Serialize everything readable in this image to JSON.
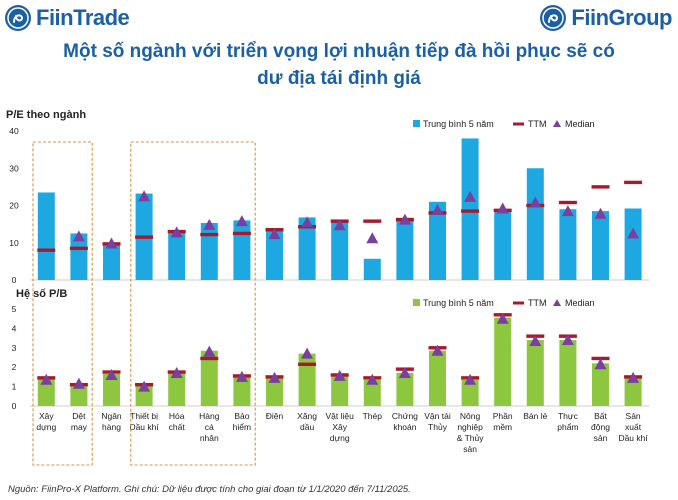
{
  "header": {
    "left_brand": "FiinTrade",
    "right_brand": "FiinGroup",
    "left_icon": "fiintrade-logo-icon",
    "right_icon": "fiingroup-logo-icon",
    "brand_color": "#1b5fa6"
  },
  "title": {
    "line1": "Một số ngành với triển vọng lợi nhuận tiếp đà hồi phục sẽ có",
    "line2": "dư địa tái định giá"
  },
  "footer": {
    "note": "Nguồn: FiinPro-X Platform. Ghi chú: Dữ liệu được tính cho giai đoạn từ 1/1/2020 đến 7/11/2025."
  },
  "colors": {
    "pe_bar": "#1ea8e2",
    "pb_bar": "#8dc63f",
    "ttm": "#a8192e",
    "median": "#7b3fa0",
    "highlight_box": "#d4934a"
  },
  "chart_data": [
    {
      "type": "bar",
      "title": "P/E theo ngành",
      "ylabel": "P/E theo ngành",
      "ylim": [
        0,
        40
      ],
      "yticks": [
        0,
        10,
        20,
        30,
        40
      ],
      "legend": [
        "Trung bình 5 năm",
        "TTM",
        "Median"
      ],
      "legend_position": "top-right",
      "categories": [
        "Xây dựng",
        "Dệt may",
        "Ngân hàng",
        "Thiết bị Dầu khí",
        "Hóa chất",
        "Hàng cá nhân",
        "Bảo hiểm",
        "Điện",
        "Xăng dầu",
        "Vật liệu Xây dựng",
        "Thép",
        "Chứng khoán",
        "Vận tải Thủy",
        "Nông nghiệp & Thủy sản",
        "Phần mềm",
        "Bán lẻ",
        "Thực phẩm",
        "Bất động sản",
        "Sản xuất Dầu khí"
      ],
      "series": [
        {
          "name": "Trung bình 5 năm",
          "kind": "bar",
          "values": [
            23.5,
            12.5,
            10,
            23.2,
            13,
            15.3,
            16,
            13.5,
            16.8,
            15.5,
            5.7,
            16.7,
            21,
            38,
            18.5,
            30,
            19,
            18.5,
            19.2
          ]
        },
        {
          "name": "TTM",
          "kind": "marker",
          "values": [
            8,
            8.5,
            9.7,
            11.5,
            13,
            12.2,
            12.5,
            13.5,
            14.3,
            15.8,
            15.8,
            16.2,
            18,
            18.5,
            18.7,
            20,
            20.8,
            25,
            26.2
          ]
        },
        {
          "name": "Median",
          "kind": "triangle",
          "values": [
            null,
            11.7,
            9.8,
            22.5,
            12.8,
            14.8,
            15.8,
            12.3,
            15.5,
            14.7,
            11.2,
            16.2,
            18.8,
            22.3,
            19.2,
            20.8,
            18.5,
            17.8,
            12.5
          ]
        }
      ]
    },
    {
      "type": "bar",
      "title": "Hệ số P/B",
      "ylabel": "Hệ số P/B",
      "ylim": [
        0,
        5
      ],
      "yticks": [
        0,
        1,
        2,
        3,
        4,
        5
      ],
      "legend": [
        "Trung bình 5 năm",
        "TTM",
        "Median"
      ],
      "legend_position": "top-right",
      "categories": [
        "Xây dựng",
        "Dệt may",
        "Ngân hàng",
        "Thiết bị Dầu khí",
        "Hóa chất",
        "Hàng cá nhân",
        "Bảo hiểm",
        "Điện",
        "Xăng dầu",
        "Vật liệu Xây dựng",
        "Thép",
        "Chứng khoán",
        "Vận tải Thủy",
        "Nông nghiệp & Thủy sản",
        "Phần mềm",
        "Bán lẻ",
        "Thực phẩm",
        "Bất động sản",
        "Sản xuất Dầu khí"
      ],
      "series": [
        {
          "name": "Trung bình 5 năm",
          "kind": "bar",
          "values": [
            1.45,
            1.15,
            1.65,
            1.1,
            1.75,
            2.85,
            1.5,
            1.45,
            2.7,
            1.55,
            1.35,
            1.7,
            2.85,
            1.35,
            4.55,
            3.4,
            3.4,
            2.2,
            1.45
          ]
        },
        {
          "name": "TTM",
          "kind": "marker",
          "values": [
            1.45,
            1.1,
            1.75,
            1.1,
            1.75,
            2.45,
            1.55,
            1.5,
            2.15,
            1.6,
            1.45,
            1.9,
            3.0,
            1.45,
            4.7,
            3.6,
            3.6,
            2.45,
            1.5
          ]
        },
        {
          "name": "Median",
          "kind": "triangle",
          "values": [
            1.35,
            1.15,
            1.6,
            1.0,
            1.7,
            2.8,
            1.5,
            1.45,
            2.7,
            1.55,
            1.35,
            1.7,
            2.85,
            1.35,
            4.5,
            3.35,
            3.4,
            2.15,
            1.45
          ]
        }
      ]
    }
  ],
  "category_label_lines": [
    [
      "Xây",
      "dựng"
    ],
    [
      "Dệt",
      "may"
    ],
    [
      "Ngân",
      "hàng"
    ],
    [
      "Thiết bị",
      "Dầu khí"
    ],
    [
      "Hóa",
      "chất"
    ],
    [
      "Hàng",
      "cá",
      "nhân"
    ],
    [
      "Bảo",
      "hiểm"
    ],
    [
      "Điện"
    ],
    [
      "Xăng",
      "dầu"
    ],
    [
      "Vật liệu",
      "Xây",
      "dựng"
    ],
    [
      "Thép"
    ],
    [
      "Chứng",
      "khoán"
    ],
    [
      "Vận tải",
      "Thủy"
    ],
    [
      "Nông",
      "nghiệp",
      "& Thủy",
      "sản"
    ],
    [
      "Phần",
      "mềm"
    ],
    [
      "Bán lẻ"
    ],
    [
      "Thực",
      "phẩm"
    ],
    [
      "Bất",
      "động",
      "sản"
    ],
    [
      "Sản",
      "xuất",
      "Dầu khí"
    ]
  ],
  "highlight_groups": [
    {
      "name": "group-1",
      "from_index": 0,
      "to_index": 1
    },
    {
      "name": "group-2",
      "from_index": 3,
      "to_index": 6
    }
  ]
}
